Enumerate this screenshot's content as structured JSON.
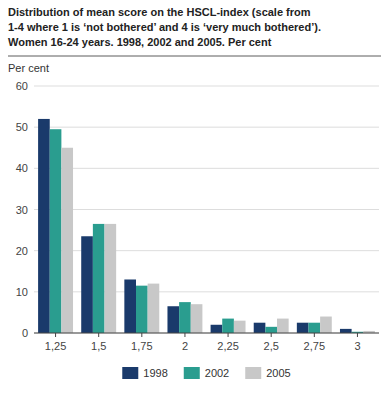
{
  "chart_data": {
    "type": "bar",
    "title": "Distribution of mean score on the HSCL-index (scale from\n1-4 where 1 is ‘not bothered’ and 4 is ‘very much bothered’).\nWomen 16-24 years. 1998, 2002 and 2005. Per cent",
    "y_label": "Per cent",
    "categories": [
      "1,25",
      "1,5",
      "1,75",
      "2",
      "2,25",
      "2,5",
      "2,75",
      "3"
    ],
    "series": [
      {
        "name": "1998",
        "color": "#1a3a6b",
        "values": [
          52,
          23.5,
          13,
          6.5,
          2,
          2.5,
          2.5,
          1
        ]
      },
      {
        "name": "2002",
        "color": "#2a9d8f",
        "values": [
          49.5,
          26.5,
          11.5,
          7.5,
          3.5,
          1.5,
          2.5,
          0.3
        ]
      },
      {
        "name": "2005",
        "color": "#c8c8c8",
        "values": [
          45,
          26.5,
          12,
          7,
          3,
          3.5,
          4,
          0.5
        ]
      }
    ],
    "ylim": [
      0,
      60
    ],
    "yticks": [
      0,
      10,
      20,
      30,
      40,
      50,
      60
    ],
    "grid": true,
    "legend": "bottom"
  }
}
